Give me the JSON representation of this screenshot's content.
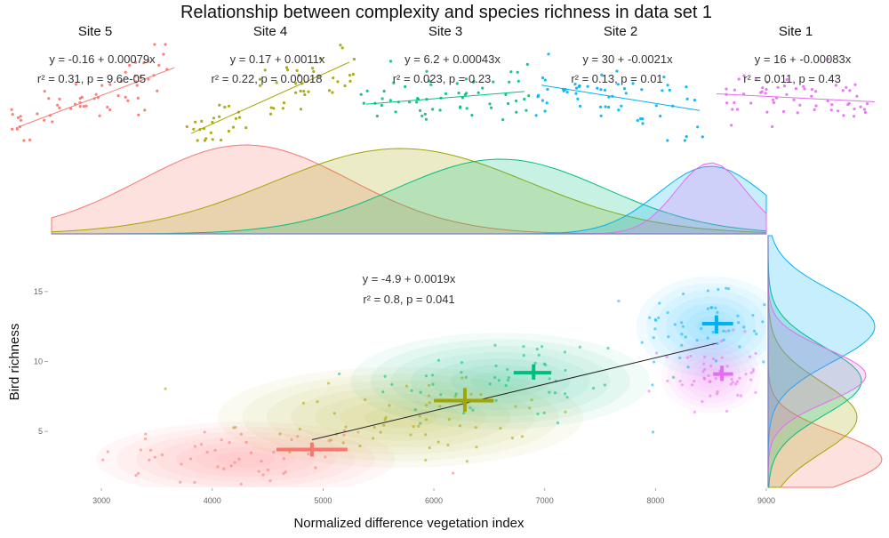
{
  "chart_data": {
    "type": "scatter",
    "title": "Relationship between complexity and species richness in data set 1",
    "xlabel": "Normalized difference vegetation index",
    "ylabel": "Bird richness",
    "xlim": [
      2550,
      9000
    ],
    "ylim": [
      1,
      19
    ],
    "x_ticks": [
      "3000",
      "4000",
      "5000",
      "6000",
      "7000",
      "8000",
      "9000"
    ],
    "y_ticks": [
      "5",
      "10",
      "15"
    ],
    "main_fit": {
      "eq_label": "y = -4.9 + 0.0019x",
      "r2_label": "r² = 0.8,  p = 0.041",
      "x": [
        4900,
        8550
      ],
      "y": [
        4.4,
        11.3
      ]
    },
    "series": [
      {
        "name": "Site 5",
        "color": "#F8766D",
        "mean_x": 4900,
        "mean_y": 3.7,
        "x_range": [
          4580,
          5220
        ],
        "y_range": [
          3.2,
          4.2
        ],
        "cx": 4300,
        "cy": 3.0,
        "sx": 900,
        "sy": 1.8
      },
      {
        "name": "Site 4",
        "color": "#A3A500",
        "mean_x": 6280,
        "mean_y": 7.2,
        "x_range": [
          6000,
          6540
        ],
        "y_range": [
          6.4,
          8.1
        ],
        "cx": 5700,
        "cy": 6.0,
        "sx": 1100,
        "sy": 2.4
      },
      {
        "name": "Site 3",
        "color": "#00BF7D",
        "mean_x": 6900,
        "mean_y": 9.2,
        "x_range": [
          6720,
          7060
        ],
        "y_range": [
          8.7,
          9.8
        ],
        "cx": 6600,
        "cy": 8.6,
        "sx": 900,
        "sy": 2.3
      },
      {
        "name": "Site 2",
        "color": "#00B0F6",
        "mean_x": 8550,
        "mean_y": 12.7,
        "x_range": [
          8420,
          8700
        ],
        "y_range": [
          12.0,
          13.3
        ],
        "cx": 8500,
        "cy": 12.5,
        "sx": 450,
        "sy": 2.4
      },
      {
        "name": "Site 1",
        "color": "#E76BF3",
        "mean_x": 8600,
        "mean_y": 9.1,
        "x_range": [
          8520,
          8700
        ],
        "y_range": [
          8.6,
          9.7
        ],
        "cx": 8500,
        "cy": 9.0,
        "sx": 300,
        "sy": 1.8
      }
    ],
    "facets": [
      {
        "title": "Site 5",
        "eq_label": "y = -0.16 + 0.00079x",
        "r2_label": "r² = 0.31,  p = 9.6e-05",
        "color": "#F8766D",
        "slope": 0.38
      },
      {
        "title": "Site 4",
        "eq_label": "y = 0.17 + 0.0011x",
        "r2_label": "r² = 0.22,  p = 0.00018",
        "color": "#A3A500",
        "slope": 0.45
      },
      {
        "title": "Site 3",
        "eq_label": "y = 6.2 + 0.00043x",
        "r2_label": "r² = 0.023,  p = 0.23",
        "color": "#00BF7D",
        "slope": 0.08
      },
      {
        "title": "Site 2",
        "eq_label": "y = 30 + -0.0021x",
        "r2_label": "r² = 0.13,  p = 0.01",
        "color": "#00B0F6",
        "slope": -0.16
      },
      {
        "title": "Site 1",
        "eq_label": "y = 16 + -0.00083x",
        "r2_label": "r² = 0.011,  p = 0.43",
        "color": "#E76BF3",
        "slope": -0.05
      }
    ],
    "legend": "none",
    "grid": false
  }
}
